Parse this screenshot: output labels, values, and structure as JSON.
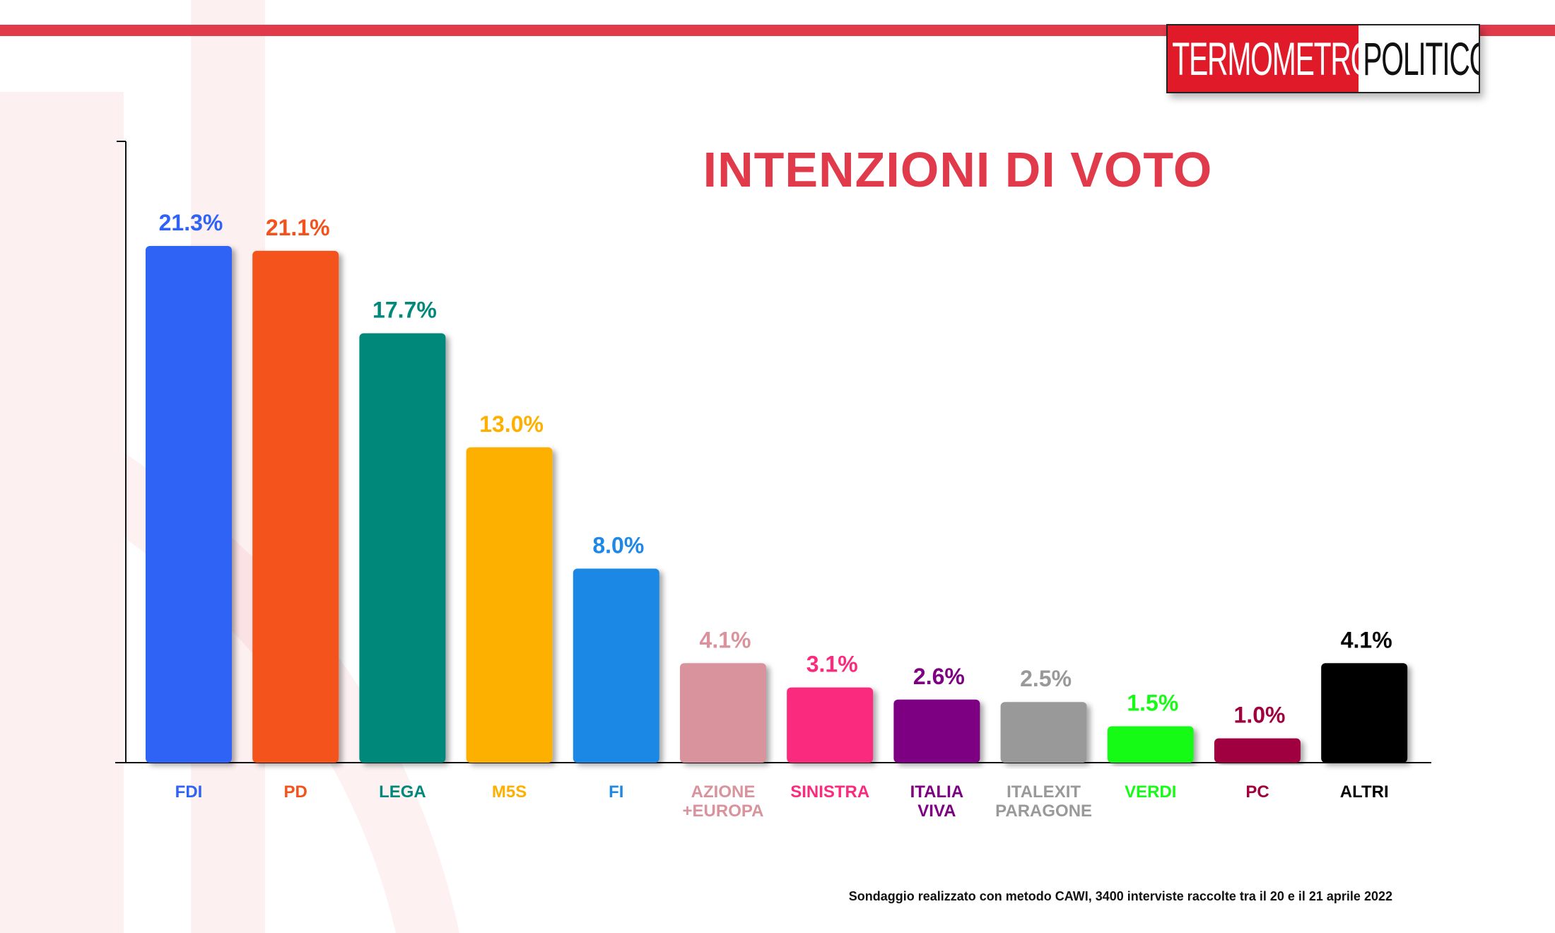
{
  "header": {
    "logo_left": "TERMOMETRO",
    "logo_right": "POLITICO"
  },
  "chart_data": {
    "type": "bar",
    "title": "INTENZIONI DI VOTO",
    "categories": [
      "FDI",
      "PD",
      "LEGA",
      "M5S",
      "FI",
      "AZIONE\n+EUROPA",
      "SINISTRA",
      "ITALIA\nVIVA",
      "ITALEXIT\nPARAGONE",
      "VERDI",
      "PC",
      "ALTRI"
    ],
    "values": [
      21.3,
      21.1,
      17.7,
      13.0,
      8.0,
      4.1,
      3.1,
      2.6,
      2.5,
      1.5,
      1.0,
      4.1
    ],
    "value_labels": [
      "21.3%",
      "21.1%",
      "17.7%",
      "13.0%",
      "8.0%",
      "4.1%",
      "3.1%",
      "2.6%",
      "2.5%",
      "1.5%",
      "1.0%",
      "4.1%"
    ],
    "colors": [
      "#2d63f6",
      "#f4521d",
      "#00897a",
      "#fdb000",
      "#1d88e5",
      "#d8939c",
      "#fa2b7e",
      "#7c0081",
      "#999999",
      "#17fb17",
      "#a1003f",
      "#000000"
    ],
    "ylim": [
      0,
      25
    ],
    "grid": false,
    "legend": "none"
  },
  "footnote": "Sondaggio realizzato con metodo CAWI, 3400 interviste raccolte tra il 20 e il 21 aprile 2022"
}
